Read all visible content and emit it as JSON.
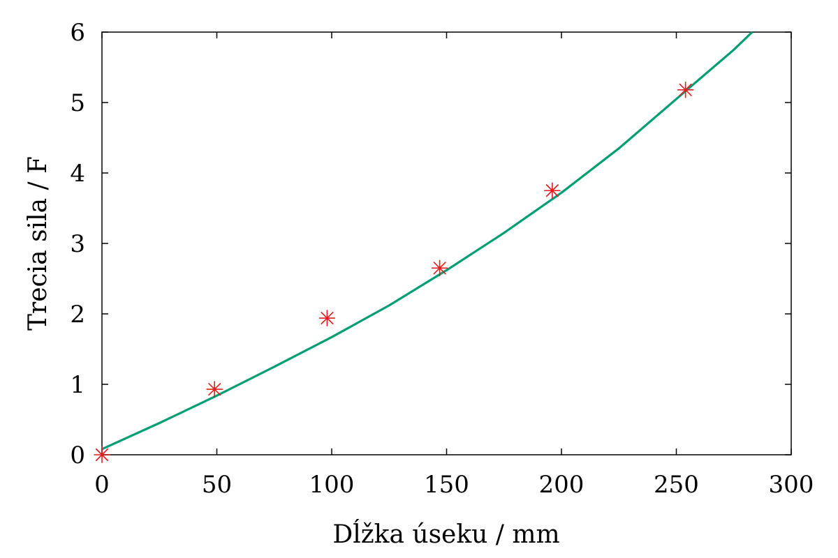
{
  "chart_data": {
    "type": "scatter",
    "title": "",
    "xlabel": "Dĺžka úseku / mm",
    "ylabel": "Trecia sila / F",
    "xlim": [
      0,
      300
    ],
    "ylim": [
      0,
      6
    ],
    "x_ticks": [
      "0",
      "50",
      "100",
      "150",
      "200",
      "250",
      "300"
    ],
    "y_ticks": [
      "0",
      "1",
      "2",
      "3",
      "4",
      "5",
      "6"
    ],
    "grid": false,
    "legend": "none",
    "series": [
      {
        "type": "scatter",
        "marker": "asterisk",
        "color": "#e41a1c",
        "x": [
          0,
          49,
          98,
          147,
          196,
          254
        ],
        "y": [
          0.0,
          0.93,
          1.94,
          2.65,
          3.75,
          5.18
        ]
      },
      {
        "type": "line",
        "color": "#009e73",
        "x": [
          0,
          25,
          50,
          75,
          100,
          125,
          150,
          175,
          200,
          225,
          250,
          275,
          283
        ],
        "y": [
          0.08,
          0.45,
          0.84,
          1.25,
          1.67,
          2.12,
          2.62,
          3.15,
          3.72,
          4.35,
          5.05,
          5.75,
          6.0
        ]
      }
    ]
  }
}
